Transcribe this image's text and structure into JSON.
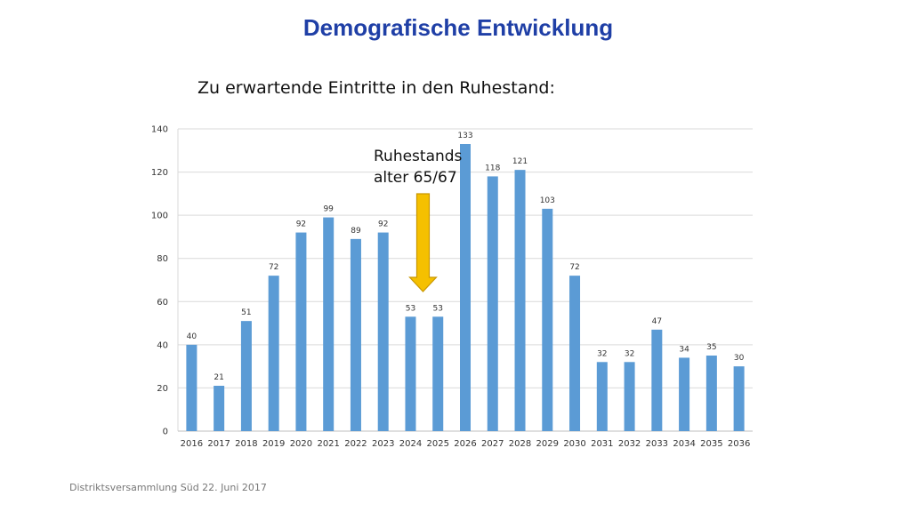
{
  "slide": {
    "title": "Demografische Entwicklung",
    "subtitle": "Zu erwartende Eintritte in den Ruhestand:",
    "footer": "Distriktsversammlung Süd 22. Juni 2017"
  },
  "annotation": {
    "line1": "Ruhestands",
    "line2": "alter 65/67",
    "arrow_icon": "down-arrow-icon",
    "arrow_color": "#f5c000",
    "arrow_outline": "#c99700"
  },
  "chart_data": {
    "type": "bar",
    "categories": [
      "2016",
      "2017",
      "2018",
      "2019",
      "2020",
      "2021",
      "2022",
      "2023",
      "2024",
      "2025",
      "2026",
      "2027",
      "2028",
      "2029",
      "2030",
      "2031",
      "2032",
      "2033",
      "2034",
      "2035",
      "2036"
    ],
    "values": [
      40,
      21,
      51,
      72,
      92,
      99,
      89,
      92,
      53,
      53,
      133,
      118,
      121,
      103,
      72,
      32,
      32,
      47,
      34,
      35,
      30
    ],
    "yticks": [
      0,
      20,
      40,
      60,
      80,
      100,
      120,
      140
    ],
    "ylim": [
      0,
      140
    ],
    "grid": true,
    "legend": "none",
    "bar_color": "#5b9bd5",
    "grid_color": "#d9d9d9",
    "data_labels": true
  }
}
